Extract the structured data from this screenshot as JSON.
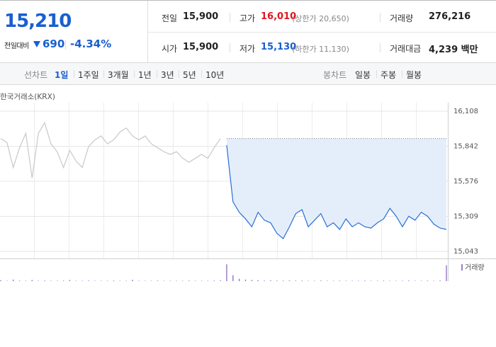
{
  "quote": {
    "price": "15,210",
    "change_label": "전일대비",
    "change": "690",
    "change_rate": "-4.34%",
    "color": "#1a5fd0"
  },
  "stats": [
    {
      "label": "전일",
      "value": "15,900",
      "color": "#222"
    },
    {
      "label": "고가",
      "value": "16,010",
      "note": "(상한가 20,650)",
      "color": "#e0141e"
    },
    {
      "label": "거래량",
      "value": "276,216",
      "color": "#222"
    },
    {
      "label": "시가",
      "value": "15,900",
      "color": "#222"
    },
    {
      "label": "저가",
      "value": "15,130",
      "note": "(하한가 11,130)",
      "color": "#1a5fd0"
    },
    {
      "label": "거래대금",
      "value": "4,239 백만",
      "color": "#222"
    }
  ],
  "tabs": {
    "line_label": "선차트",
    "line_periods": [
      "1일",
      "1주일",
      "3개월",
      "1년",
      "3년",
      "5년",
      "10년"
    ],
    "active": 0,
    "candle_label": "봉차트",
    "candle_periods": [
      "일봉",
      "주봉",
      "월봉"
    ]
  },
  "chart_data": {
    "type": "line",
    "source": "한국거래소(KRX)",
    "ylim": [
      15043,
      16108
    ],
    "yticks": [
      {
        "value": 16108,
        "label": "16,108"
      },
      {
        "value": 15842,
        "label": "15,842"
      },
      {
        "value": 15576,
        "label": "15,576"
      },
      {
        "value": 15309,
        "label": "15,309"
      },
      {
        "value": 15043,
        "label": "15,043"
      }
    ],
    "baseline": 15900,
    "grid": true,
    "series": [
      {
        "color": "#c8c8c8",
        "values": [
          15900,
          15870,
          15680,
          15830,
          15940,
          15600,
          15940,
          16020,
          15860,
          15800,
          15680,
          15810,
          15730,
          15680,
          15840,
          15890,
          15920,
          15860,
          15890,
          15950,
          15980,
          15920,
          15890,
          15920,
          15860,
          15830,
          15800,
          15780,
          15800,
          15750,
          15720,
          15750,
          15780,
          15750,
          15830,
          15900,
          null,
          null,
          null,
          null,
          null,
          null,
          null,
          null,
          null,
          null,
          null,
          null,
          null,
          null,
          null,
          null,
          null,
          null,
          null,
          null,
          null,
          null,
          null,
          null,
          null,
          null,
          null,
          null,
          null,
          null,
          null,
          null,
          null,
          null,
          null,
          null
        ]
      },
      {
        "color": "#2a6ed6",
        "fill": "#e4eefb",
        "values": [
          null,
          null,
          null,
          null,
          null,
          null,
          null,
          null,
          null,
          null,
          null,
          null,
          null,
          null,
          null,
          null,
          null,
          null,
          null,
          null,
          null,
          null,
          null,
          null,
          null,
          null,
          null,
          null,
          null,
          null,
          null,
          null,
          null,
          null,
          null,
          null,
          15850,
          15420,
          15340,
          15290,
          15230,
          15340,
          15280,
          15260,
          15180,
          15140,
          15230,
          15330,
          15360,
          15230,
          15280,
          15330,
          15230,
          15260,
          15210,
          15290,
          15230,
          15260,
          15230,
          15220,
          15260,
          15290,
          15370,
          15310,
          15230,
          15310,
          15280,
          15340,
          15310,
          15250,
          15220,
          15210
        ]
      }
    ],
    "volume": {
      "name": "거래량",
      "color": "#9a80c4",
      "ylim": [
        0,
        100
      ],
      "values": [
        5,
        2,
        8,
        3,
        2,
        6,
        2,
        3,
        2,
        2,
        3,
        6,
        2,
        2,
        3,
        2,
        2,
        2,
        3,
        2,
        2,
        7,
        2,
        2,
        2,
        3,
        2,
        2,
        2,
        2,
        3,
        2,
        2,
        2,
        3,
        4,
        85,
        30,
        12,
        8,
        6,
        5,
        3,
        4,
        3,
        3,
        4,
        3,
        3,
        2,
        2,
        3,
        2,
        2,
        3,
        2,
        2,
        2,
        3,
        2,
        2,
        3,
        2,
        2,
        2,
        3,
        2,
        2,
        3,
        2,
        4,
        80
      ]
    }
  }
}
